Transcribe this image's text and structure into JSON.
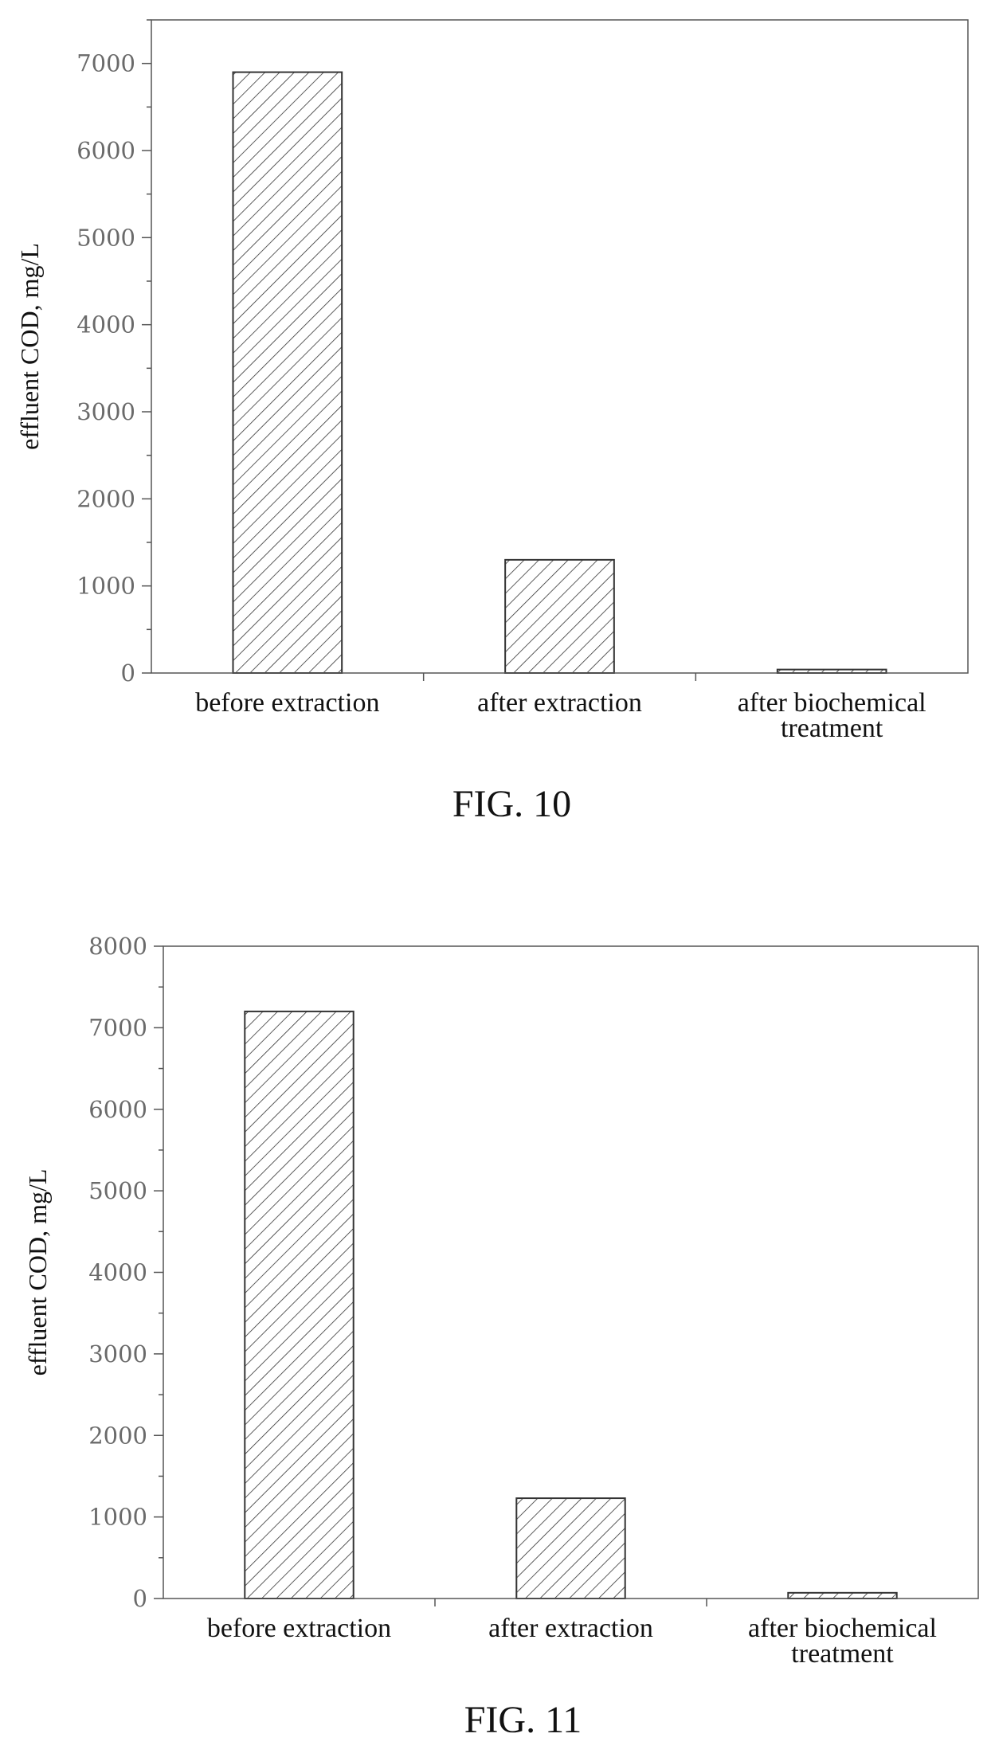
{
  "chart_data": [
    {
      "type": "bar",
      "caption": "FIG. 10",
      "ylabel": "effluent COD, mg/L",
      "xlabel": "",
      "categories": [
        "before extraction",
        "after extraction",
        "after biochemical treatment"
      ],
      "category_lines": [
        [
          "before extraction"
        ],
        [
          "after extraction"
        ],
        [
          "after biochemical",
          "treatment"
        ]
      ],
      "values": [
        6900,
        1300,
        40
      ],
      "ylim": [
        0,
        7500
      ],
      "yticks": [
        0,
        1000,
        2000,
        3000,
        4000,
        5000,
        6000,
        7000
      ],
      "grid": false,
      "fill": "diagonal-hatch"
    },
    {
      "type": "bar",
      "caption": "FIG. 11",
      "ylabel": "effluent COD, mg/L",
      "xlabel": "",
      "categories": [
        "before extraction",
        "after extraction",
        "after biochemical treatment"
      ],
      "category_lines": [
        [
          "before extraction"
        ],
        [
          "after extraction"
        ],
        [
          "after biochemical",
          "treatment"
        ]
      ],
      "values": [
        7200,
        1230,
        70
      ],
      "ylim": [
        0,
        8000
      ],
      "yticks": [
        0,
        1000,
        2000,
        3000,
        4000,
        5000,
        6000,
        7000,
        8000
      ],
      "grid": false,
      "fill": "diagonal-hatch"
    }
  ]
}
